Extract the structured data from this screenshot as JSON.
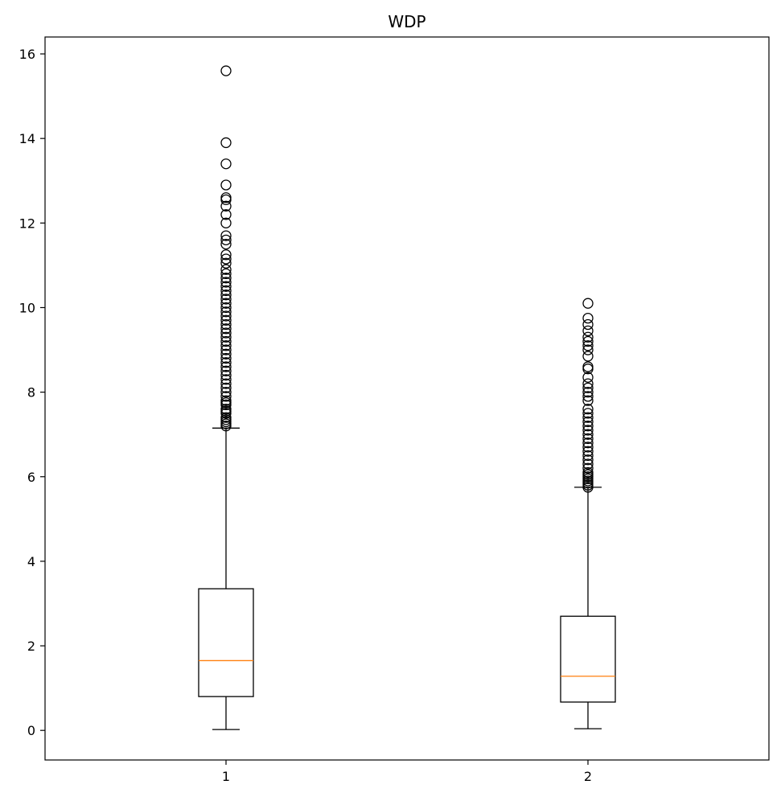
{
  "chart_data": {
    "type": "box",
    "title": "WDP",
    "xlabel": "",
    "ylabel": "",
    "categories": [
      "1",
      "2"
    ],
    "ylim": [
      -0.7,
      16.4
    ],
    "yticks": [
      0,
      2,
      4,
      6,
      8,
      10,
      12,
      14,
      16
    ],
    "grid": false,
    "median_color": "#ff7f0e",
    "box_color": "#000000",
    "boxes": [
      {
        "label": "1",
        "whislo": 0.02,
        "q1": 0.8,
        "med": 1.65,
        "q3": 3.35,
        "whishi": 7.15,
        "fliers": [
          7.2,
          7.25,
          7.3,
          7.35,
          7.4,
          7.5,
          7.55,
          7.6,
          7.7,
          7.75,
          7.8,
          7.9,
          8.0,
          8.1,
          8.2,
          8.3,
          8.4,
          8.5,
          8.6,
          8.7,
          8.8,
          8.9,
          9.0,
          9.1,
          9.2,
          9.3,
          9.4,
          9.5,
          9.6,
          9.7,
          9.8,
          9.9,
          10.0,
          10.1,
          10.2,
          10.3,
          10.4,
          10.5,
          10.6,
          10.7,
          10.8,
          10.9,
          11.05,
          11.15,
          11.25,
          11.5,
          11.6,
          11.7,
          12.0,
          12.2,
          12.4,
          12.55,
          12.6,
          12.9,
          13.4,
          13.9,
          15.6
        ]
      },
      {
        "label": "2",
        "whislo": 0.04,
        "q1": 0.67,
        "med": 1.28,
        "q3": 2.7,
        "whishi": 5.75,
        "fliers": [
          5.75,
          5.8,
          5.85,
          5.9,
          5.95,
          6.0,
          6.05,
          6.1,
          6.2,
          6.3,
          6.4,
          6.5,
          6.6,
          6.7,
          6.8,
          6.9,
          7.0,
          7.1,
          7.2,
          7.3,
          7.4,
          7.5,
          7.6,
          7.8,
          7.9,
          8.0,
          8.1,
          8.2,
          8.35,
          8.55,
          8.6,
          8.85,
          9.0,
          9.1,
          9.2,
          9.3,
          9.45,
          9.6,
          9.75,
          10.1
        ]
      }
    ]
  }
}
